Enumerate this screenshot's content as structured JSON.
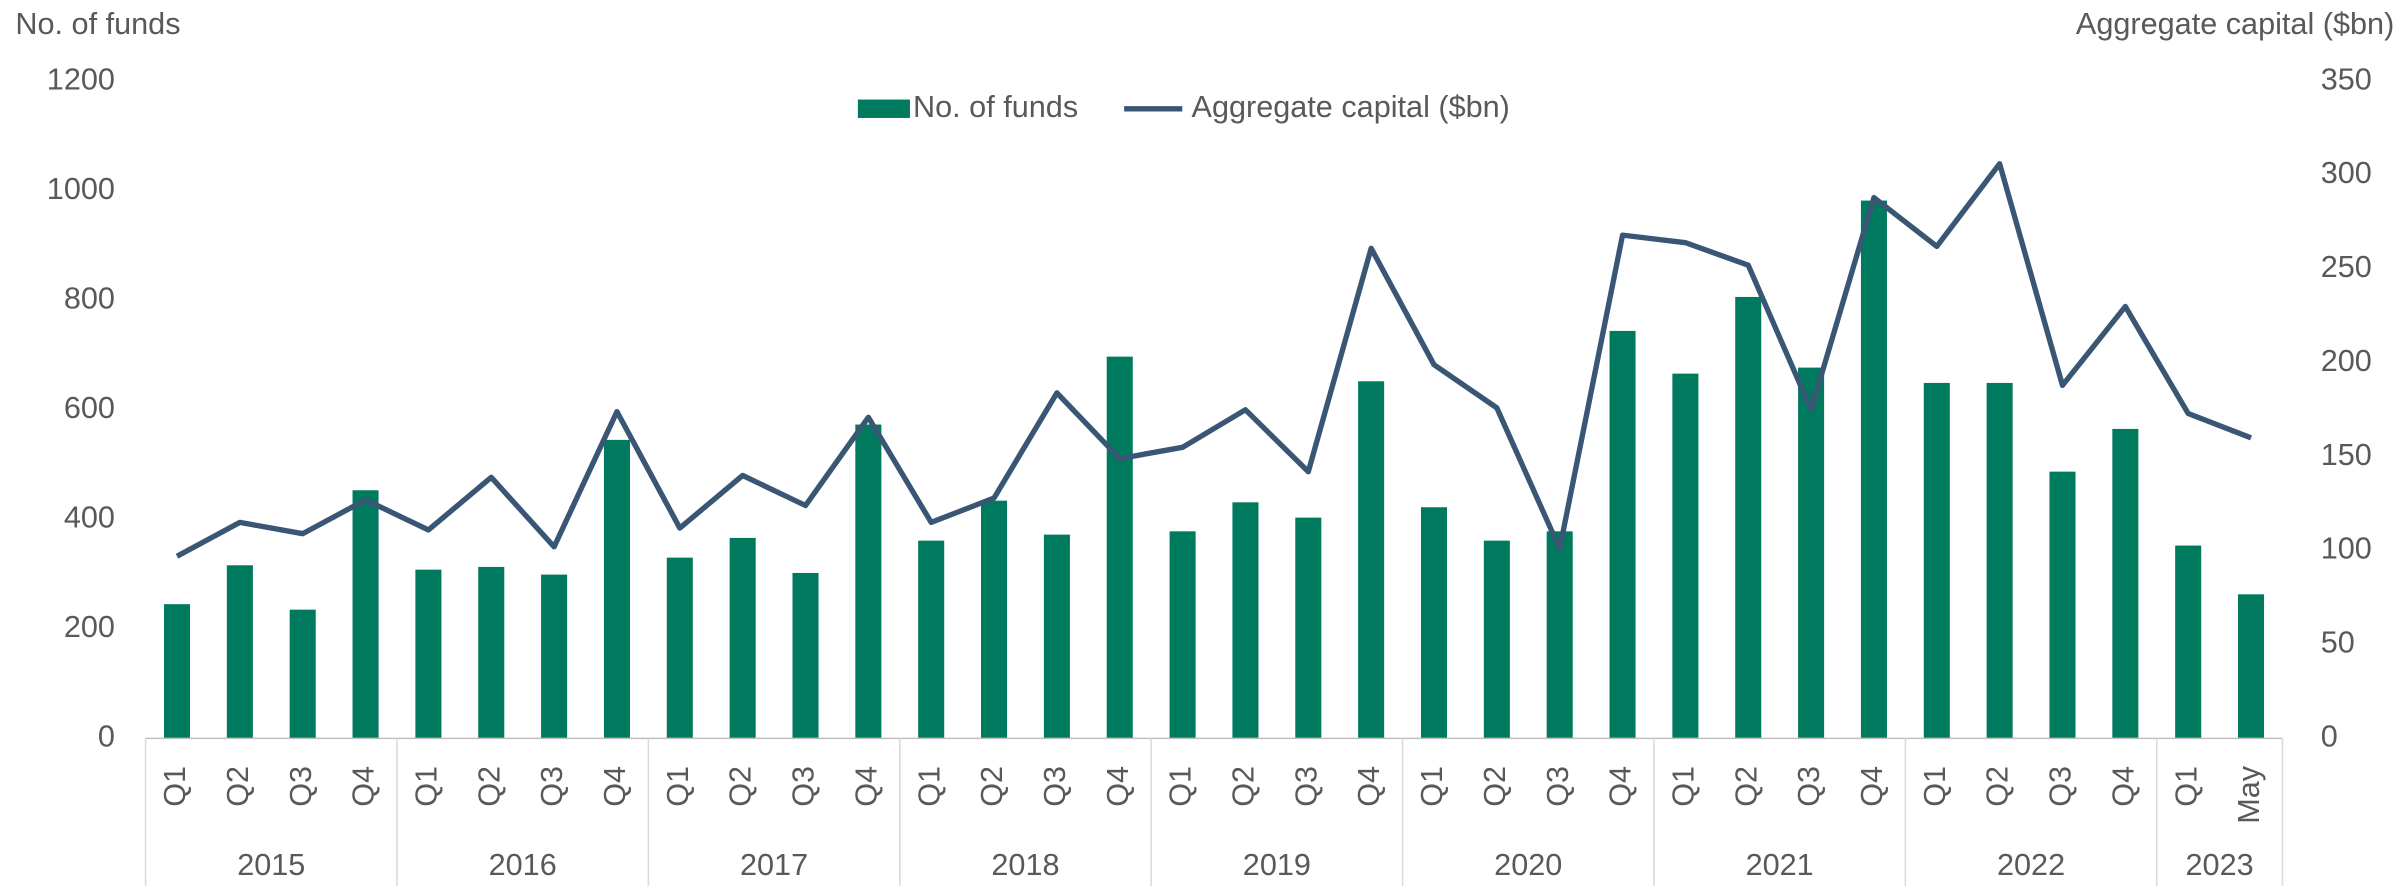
{
  "chart_data": {
    "type": "bar_line",
    "y_label": "No. of funds",
    "y2_label": "Aggregate capital ($bn)",
    "categories": [
      "Q1",
      "Q2",
      "Q3",
      "Q4",
      "Q1",
      "Q2",
      "Q3",
      "Q4",
      "Q1",
      "Q2",
      "Q3",
      "Q4",
      "Q1",
      "Q2",
      "Q3",
      "Q4",
      "Q1",
      "Q2",
      "Q3",
      "Q4",
      "Q1",
      "Q2",
      "Q3",
      "Q4",
      "Q1",
      "Q2",
      "Q3",
      "Q4",
      "Q1",
      "Q2",
      "Q3",
      "Q4",
      "Q1",
      "May"
    ],
    "year_groups": [
      {
        "label": "2015",
        "count": 4
      },
      {
        "label": "2016",
        "count": 4
      },
      {
        "label": "2017",
        "count": 4
      },
      {
        "label": "2018",
        "count": 4
      },
      {
        "label": "2019",
        "count": 4
      },
      {
        "label": "2020",
        "count": 4
      },
      {
        "label": "2021",
        "count": 4
      },
      {
        "label": "2022",
        "count": 4
      },
      {
        "label": "2023",
        "count": 2
      }
    ],
    "series": [
      {
        "name": "No. of funds",
        "color": "#007a5e",
        "kind": "bar",
        "values": [
          245,
          316,
          235,
          453,
          308,
          313,
          299,
          545,
          330,
          366,
          302,
          573,
          361,
          434,
          372,
          697,
          378,
          431,
          403,
          652,
          422,
          361,
          378,
          744,
          666,
          806,
          677,
          982,
          649,
          649,
          487,
          565,
          352,
          263
        ]
      },
      {
        "name": "Aggregate capital ($bn)",
        "color": "#3a5675",
        "kind": "line",
        "axis": "y2",
        "values": [
          97,
          115,
          109,
          127,
          111,
          139,
          102,
          174,
          112,
          140,
          124,
          171,
          115,
          128,
          184,
          149,
          155,
          175,
          142,
          261,
          199,
          176,
          101,
          268,
          264,
          252,
          175,
          288,
          262,
          306,
          188,
          230,
          173,
          160
        ]
      }
    ],
    "ylim": [
      0,
      1200
    ],
    "yticks": [
      0,
      200,
      400,
      600,
      800,
      1000,
      1200
    ],
    "y2lim": [
      0,
      350
    ],
    "y2ticks": [
      0,
      50,
      100,
      150,
      200,
      250,
      300,
      350
    ],
    "grid": false,
    "legend": "top"
  }
}
